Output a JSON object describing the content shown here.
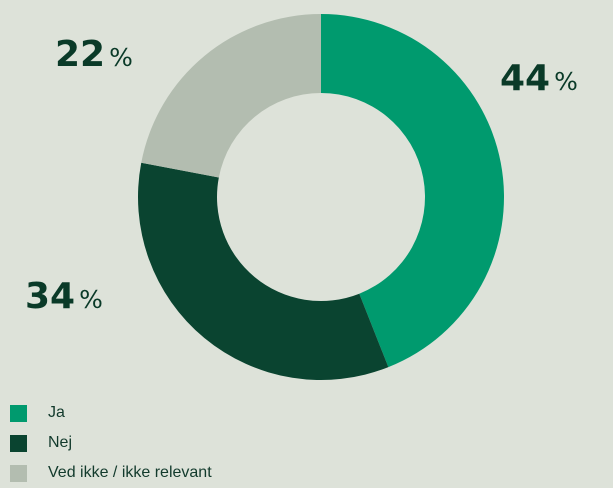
{
  "chart_data": {
    "type": "pie",
    "donut": true,
    "title": "",
    "slices": [
      {
        "label": "Ja",
        "value": 44,
        "color": "#009a6e"
      },
      {
        "label": "Nej",
        "value": 34,
        "color": "#0a4430"
      },
      {
        "label": "Ved ikke / ikke relevant",
        "value": 22,
        "color": "#b3bdb0"
      }
    ],
    "percent_sign": "%",
    "legend_position": "bottom-left"
  }
}
